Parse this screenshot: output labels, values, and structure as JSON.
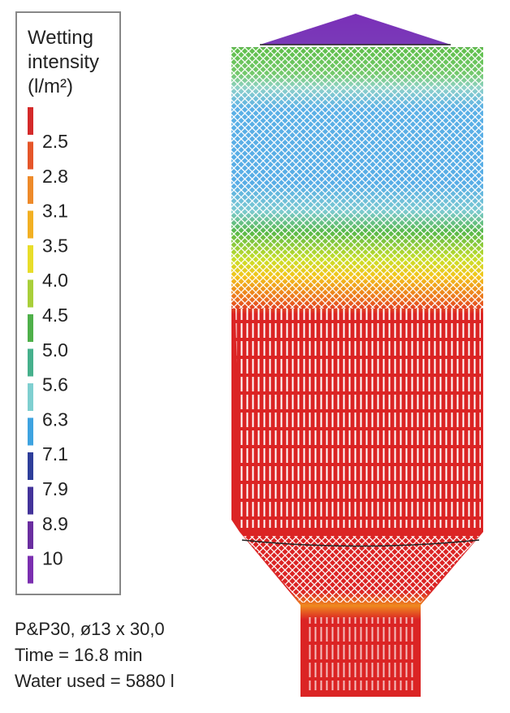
{
  "legend": {
    "title_lines": [
      "Wetting",
      "intensity",
      "(l/m²)"
    ],
    "labels": [
      "2.5",
      "2.8",
      "3.1",
      "3.5",
      "4.0",
      "4.5",
      "5.0",
      "5.6",
      "6.3",
      "7.1",
      "7.9",
      "8.9",
      "10"
    ]
  },
  "caption": [
    "P&P30, ø13 x 30,0",
    "Time = 16.8 min",
    "Water used = 5880 l"
  ]
}
